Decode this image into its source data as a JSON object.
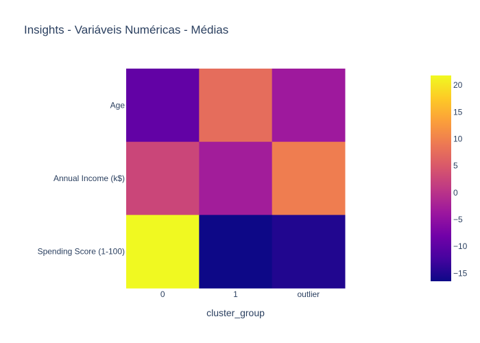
{
  "chart_data": {
    "type": "heatmap",
    "title": "Insights - Variáveis Numéricas - Médias",
    "xlabel": "cluster_group",
    "ylabel": "",
    "x_categories": [
      "0",
      "1",
      "outlier"
    ],
    "y_categories": [
      "Age",
      "Annual Income (k$)",
      "Spending Score (1-100)"
    ],
    "z": [
      [
        -9.5,
        7.5,
        -3.5
      ],
      [
        2.5,
        -3.0,
        9.5
      ],
      [
        21.8,
        -16.5,
        -15.0
      ]
    ],
    "zmin": -16.5,
    "zmax": 21.8,
    "colorscale": "plasma",
    "colorbar_ticks": [
      -15,
      -10,
      -5,
      0,
      5,
      10,
      15,
      20
    ],
    "colorbar_tick_labels": [
      "−15",
      "−10",
      "−5",
      "0",
      "5",
      "10",
      "15",
      "20"
    ],
    "colors": [
      "#0d0887",
      "#46039f",
      "#7201a8",
      "#9c179e",
      "#bd3786",
      "#d8576b",
      "#ed7953",
      "#fb9f3a",
      "#fdca26",
      "#f0f921"
    ]
  }
}
